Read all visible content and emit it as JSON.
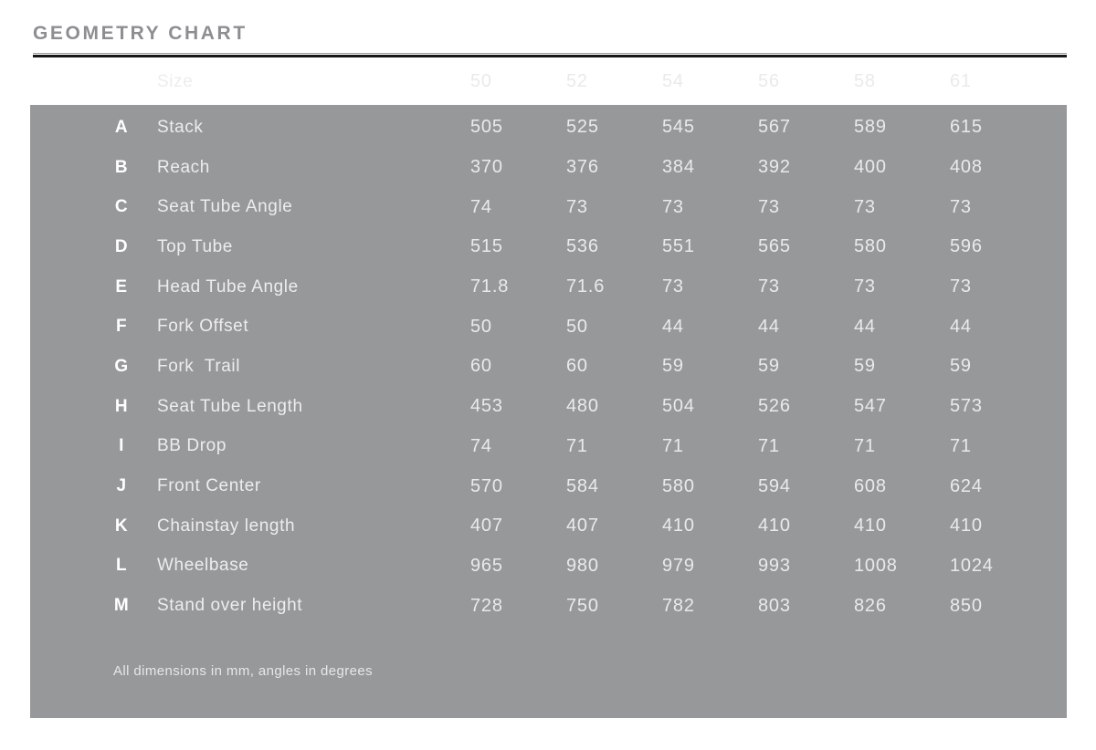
{
  "title": "GEOMETRY CHART",
  "colors": {
    "panel_gray": "#96989a",
    "title_gray": "#8c8e91",
    "header_text_gray": "#a9abae",
    "rule_black": "#171717",
    "rule_light_gray": "#9b9b9b",
    "row_letter_white": "#ffffff",
    "row_text": "#ededee",
    "page_background": "#ffffff"
  },
  "chart_data": {
    "type": "table",
    "title": "GEOMETRY CHART",
    "size_header_label": "Size",
    "sizes": [
      "50",
      "52",
      "54",
      "56",
      "58",
      "61"
    ],
    "rows": [
      {
        "letter": "A",
        "label": "Stack",
        "values": [
          "505",
          "525",
          "545",
          "567",
          "589",
          "615"
        ]
      },
      {
        "letter": "B",
        "label": "Reach",
        "values": [
          "370",
          "376",
          "384",
          "392",
          "400",
          "408"
        ]
      },
      {
        "letter": "C",
        "label": "Seat Tube Angle",
        "values": [
          "74",
          "73",
          "73",
          "73",
          "73",
          "73"
        ]
      },
      {
        "letter": "D",
        "label": "Top Tube",
        "values": [
          "515",
          "536",
          "551",
          "565",
          "580",
          "596"
        ]
      },
      {
        "letter": "E",
        "label": "Head Tube Angle",
        "values": [
          "71.8",
          "71.6",
          "73",
          "73",
          "73",
          "73"
        ]
      },
      {
        "letter": "F",
        "label": "Fork Offset",
        "values": [
          "50",
          "50",
          "44",
          "44",
          "44",
          "44"
        ]
      },
      {
        "letter": "G",
        "label": "Fork  Trail",
        "values": [
          "60",
          "60",
          "59",
          "59",
          "59",
          "59"
        ]
      },
      {
        "letter": "H",
        "label": "Seat Tube Length",
        "values": [
          "453",
          "480",
          "504",
          "526",
          "547",
          "573"
        ]
      },
      {
        "letter": "I",
        "label": "BB Drop",
        "values": [
          "74",
          "71",
          "71",
          "71",
          "71",
          "71"
        ]
      },
      {
        "letter": "J",
        "label": "Front Center",
        "values": [
          "570",
          "584",
          "580",
          "594",
          "608",
          "624"
        ]
      },
      {
        "letter": "K",
        "label": "Chainstay length",
        "values": [
          "407",
          "407",
          "410",
          "410",
          "410",
          "410"
        ]
      },
      {
        "letter": "L",
        "label": "Wheelbase",
        "values": [
          "965",
          "980",
          "979",
          "993",
          "1008",
          "1024"
        ]
      },
      {
        "letter": "M",
        "label": "Stand over height",
        "values": [
          "728",
          "750",
          "782",
          "803",
          "826",
          "850"
        ]
      }
    ],
    "footnote": "All dimensions in mm, angles in degrees",
    "layout": {
      "grid": false,
      "legend": false,
      "units": "mm and degrees"
    }
  }
}
